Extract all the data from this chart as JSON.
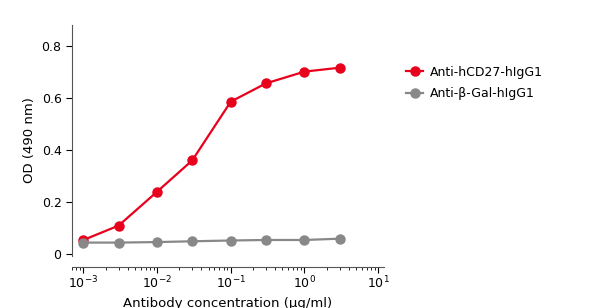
{
  "red_x": [
    0.001,
    0.003,
    0.01,
    0.03,
    0.1,
    0.3,
    1.0,
    3.0
  ],
  "red_y": [
    0.055,
    0.11,
    0.24,
    0.36,
    0.585,
    0.655,
    0.7,
    0.715
  ],
  "gray_x": [
    0.001,
    0.003,
    0.01,
    0.03,
    0.1,
    0.3,
    1.0,
    3.0
  ],
  "gray_y": [
    0.045,
    0.045,
    0.047,
    0.05,
    0.053,
    0.055,
    0.055,
    0.06
  ],
  "red_color": "#e8001c",
  "gray_color": "#888888",
  "red_label": "Anti-hCD27-hIgG1",
  "gray_label": "Anti-β-Gal-hIgG1",
  "xlabel": "Antibody concentration (μg/ml)",
  "ylabel": "OD (490 nm)",
  "xlim": [
    0.0007,
    12
  ],
  "ylim": [
    -0.005,
    0.88
  ],
  "yticks": [
    0.0,
    0.2,
    0.4,
    0.6,
    0.8
  ],
  "xtick_labels": [
    "10⁻³",
    "10⁻²",
    "10⁻¹",
    "10⁰",
    "10¹"
  ],
  "marker_size": 6.5,
  "line_width": 1.6,
  "font_size": 9,
  "label_font_size": 9.5
}
